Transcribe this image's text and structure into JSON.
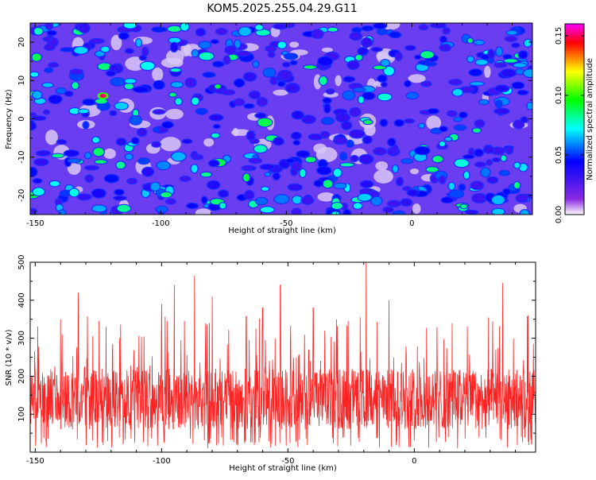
{
  "chart_data": [
    {
      "type": "heatmap",
      "title": "KOM5.2025.255.04.29.G11",
      "xlabel": "Height of straight line (km)",
      "ylabel": "Frequency (Hz)",
      "xlim": [
        -152,
        48
      ],
      "ylim": [
        -25,
        25
      ],
      "xticks": [
        -150,
        -100,
        -50,
        0
      ],
      "xtick_labels": [
        "-150",
        "-100",
        "-50",
        "0"
      ],
      "yticks": [
        -20,
        -10,
        0,
        10,
        20
      ],
      "ytick_labels": [
        "-20",
        "-10",
        "0",
        "10",
        "20"
      ],
      "colorbar": {
        "label": "Normalized spectral amplitude",
        "range": [
          0.0,
          0.16
        ],
        "ticks": [
          0.0,
          0.05,
          0.1,
          0.15
        ],
        "tick_labels": [
          "0.00",
          "0.05",
          "0.10",
          "0.15"
        ],
        "colormap": [
          "#ffffff",
          "#8a2be2",
          "#0000ff",
          "#00ffff",
          "#00ff00",
          "#ffff00",
          "#ff0000",
          "#ff00ff"
        ]
      },
      "peak": {
        "x": -123,
        "y": 6,
        "value": 0.15
      },
      "background_level": 0.025
    },
    {
      "type": "line",
      "title": "",
      "xlabel": "Height of straight line (km)",
      "ylabel": "SNR (10 * v/v)",
      "xlim": [
        -152,
        48
      ],
      "ylim": [
        0,
        500
      ],
      "xticks": [
        -150,
        -100,
        -50,
        0
      ],
      "xtick_labels": [
        "-150",
        "-100",
        "-50",
        "0"
      ],
      "yticks": [
        100,
        200,
        300,
        400,
        500
      ],
      "ytick_labels": [
        "100",
        "200",
        "300",
        "400",
        "500"
      ],
      "series": [
        {
          "name": "SNR",
          "color": "#ff2222",
          "baseline_mean": 140,
          "noise_amplitude": 80,
          "peaks": [
            {
              "x": -150,
              "y": 210
            },
            {
              "x": -133,
              "y": 420
            },
            {
              "x": -122,
              "y": 330
            },
            {
              "x": -100,
              "y": 390
            },
            {
              "x": -95,
              "y": 440
            },
            {
              "x": -87,
              "y": 465
            },
            {
              "x": -80,
              "y": 410
            },
            {
              "x": -60,
              "y": 380
            },
            {
              "x": -53,
              "y": 440
            },
            {
              "x": -40,
              "y": 380
            },
            {
              "x": -19,
              "y": 500
            },
            {
              "x": -10,
              "y": 400
            },
            {
              "x": 15,
              "y": 340
            },
            {
              "x": 35,
              "y": 445
            },
            {
              "x": 45,
              "y": 360
            }
          ]
        }
      ]
    }
  ]
}
